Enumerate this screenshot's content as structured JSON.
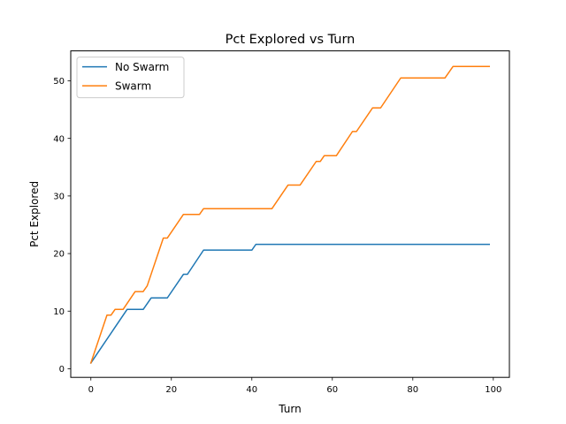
{
  "chart_data": {
    "type": "line",
    "title": "Pct Explored vs Turn",
    "xlabel": "Turn",
    "ylabel": "Pct Explored",
    "xlim": [
      -5,
      104
    ],
    "ylim": [
      -1.5,
      55.2
    ],
    "xticks": [
      0,
      20,
      40,
      60,
      80,
      100
    ],
    "yticks": [
      0,
      10,
      20,
      30,
      40,
      50
    ],
    "grid": false,
    "legend_position": "upper-left",
    "series": [
      {
        "name": "No Swarm",
        "color": "#1f77b4",
        "points": [
          [
            0,
            1.0
          ],
          [
            9,
            10.3
          ],
          [
            13,
            10.3
          ],
          [
            15,
            12.3
          ],
          [
            19,
            12.3
          ],
          [
            23,
            16.4
          ],
          [
            24,
            16.4
          ],
          [
            28,
            20.6
          ],
          [
            40,
            20.6
          ],
          [
            41,
            21.6
          ],
          [
            99,
            21.6
          ]
        ]
      },
      {
        "name": "Swarm",
        "color": "#ff7f0e",
        "points": [
          [
            0,
            1.0
          ],
          [
            4,
            9.3
          ],
          [
            5,
            9.3
          ],
          [
            6,
            10.3
          ],
          [
            8,
            10.3
          ],
          [
            11,
            13.4
          ],
          [
            13,
            13.4
          ],
          [
            14,
            14.4
          ],
          [
            18,
            22.7
          ],
          [
            19,
            22.7
          ],
          [
            23,
            26.8
          ],
          [
            27,
            26.8
          ],
          [
            28,
            27.8
          ],
          [
            45,
            27.8
          ],
          [
            49,
            31.9
          ],
          [
            52,
            31.9
          ],
          [
            56,
            36.0
          ],
          [
            57,
            36.0
          ],
          [
            58,
            37.0
          ],
          [
            61,
            37.0
          ],
          [
            65,
            41.2
          ],
          [
            66,
            41.2
          ],
          [
            70,
            45.3
          ],
          [
            72,
            45.3
          ],
          [
            77,
            50.5
          ],
          [
            88,
            50.5
          ],
          [
            90,
            52.5
          ],
          [
            99,
            52.5
          ]
        ]
      }
    ]
  }
}
